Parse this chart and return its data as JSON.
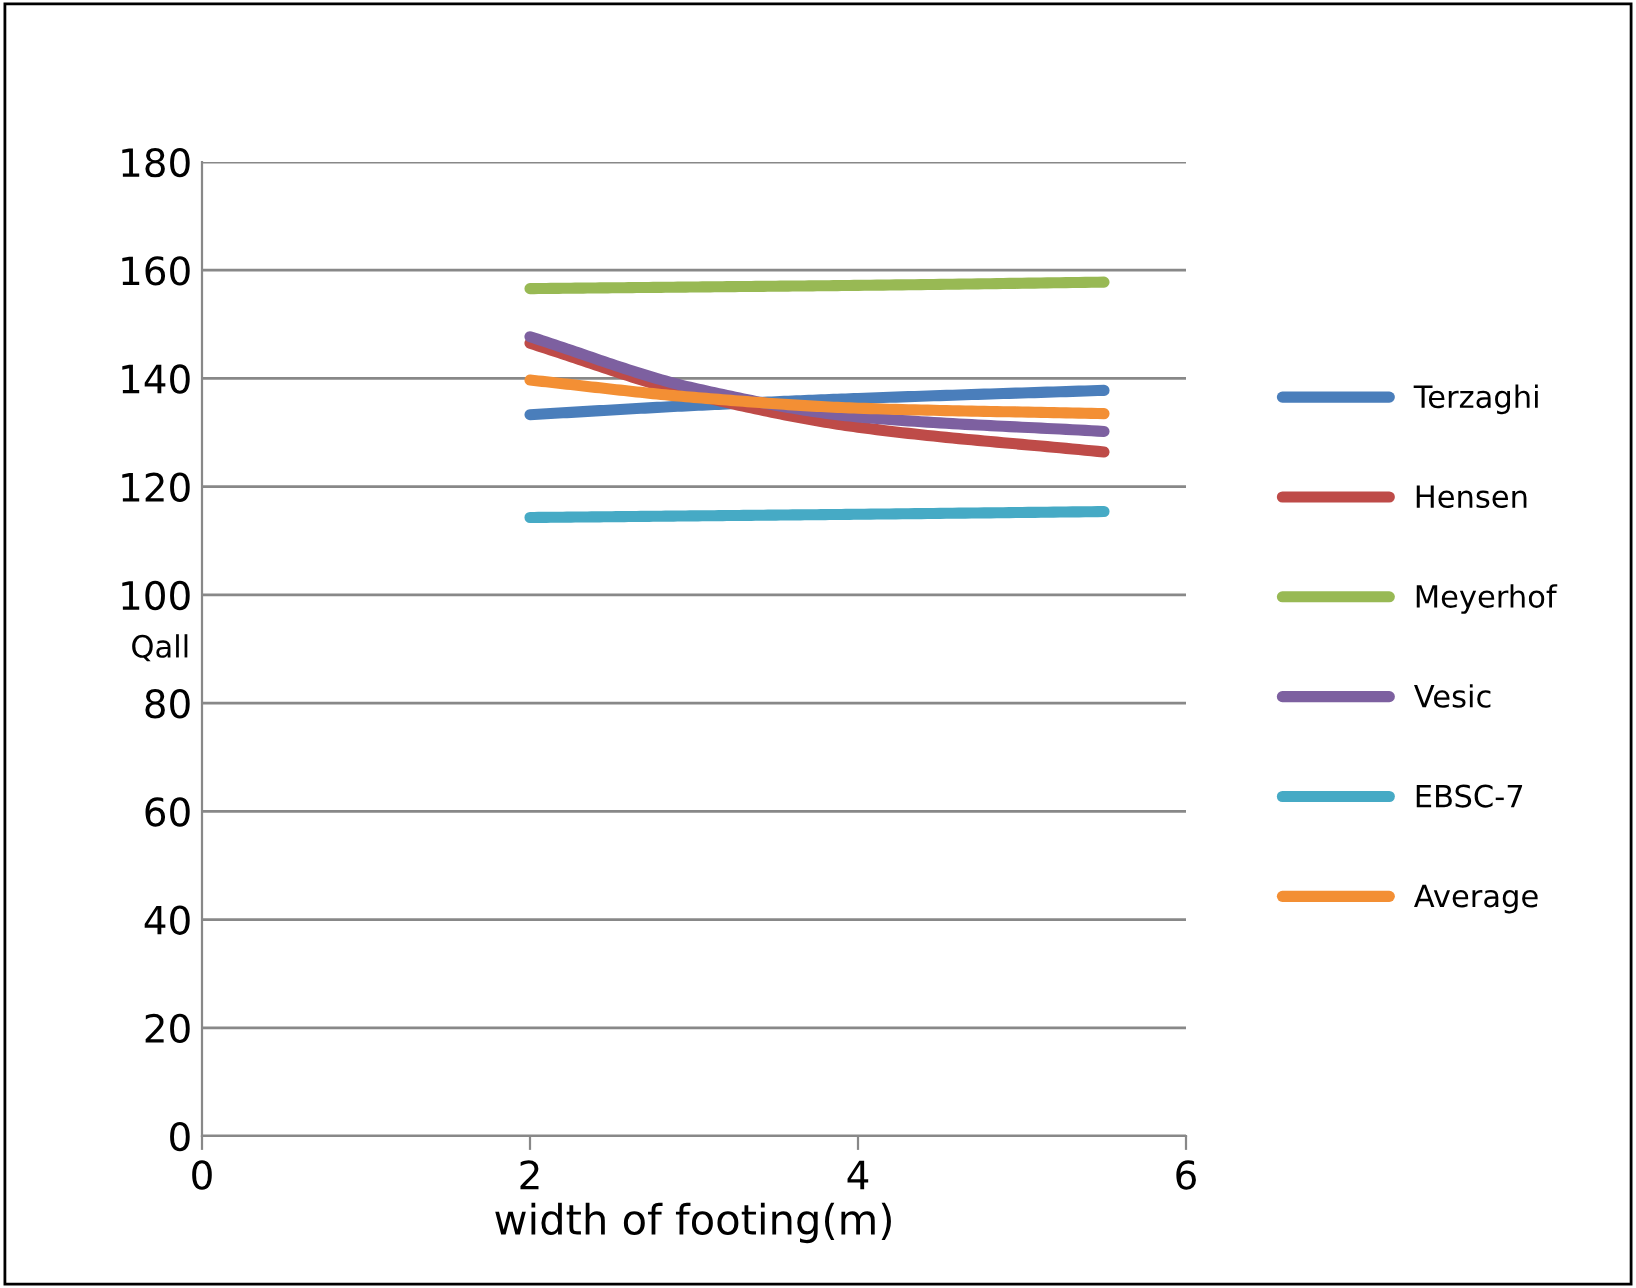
{
  "chart_data": {
    "type": "line",
    "xlabel": "width of footing(m)",
    "ylabel": "Qall",
    "x": [
      2,
      3,
      4,
      5.5
    ],
    "series": [
      {
        "name": "Terzaghi",
        "color": "#4a7ebb",
        "values": [
          133.3,
          135,
          136.3,
          137.8
        ]
      },
      {
        "name": "Hensen",
        "color": "#be4b48",
        "values": [
          146.5,
          137,
          131,
          126.4
        ]
      },
      {
        "name": "Meyerhof",
        "color": "#98b954",
        "values": [
          156.6,
          156.9,
          157.2,
          157.8
        ]
      },
      {
        "name": "Vesic",
        "color": "#7d60a0",
        "values": [
          147.7,
          138.2,
          132.9,
          130.2
        ]
      },
      {
        "name": "EBSC-7",
        "color": "#46aac5",
        "values": [
          114.3,
          114.6,
          114.9,
          115.4
        ]
      },
      {
        "name": "Average",
        "color": "#f38f34",
        "values": [
          139.7,
          136.5,
          134.5,
          133.5
        ]
      }
    ],
    "xlim": [
      0,
      6
    ],
    "xticks": [
      0,
      2,
      4,
      6
    ],
    "ylim": [
      0,
      180
    ],
    "yticks": [
      0,
      20,
      40,
      60,
      80,
      100,
      120,
      140,
      160,
      180
    ],
    "grid": "y",
    "legend": "right",
    "marker": "none",
    "line_style": "solid"
  }
}
